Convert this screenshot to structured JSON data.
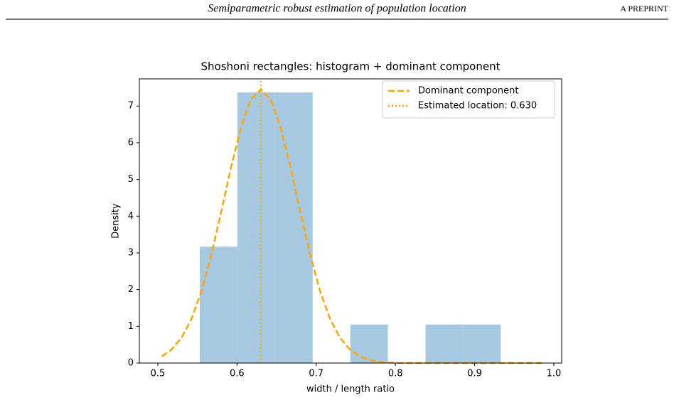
{
  "header": {
    "title": "Semiparametric robust estimation of population location",
    "right": "A PREPRINT"
  },
  "chart_data": {
    "type": "histogram",
    "title": "Shoshoni rectangles: histogram + dominant component",
    "x_label": "width / length ratio",
    "y_label": "Density",
    "bins": [
      0.553,
      0.6005,
      0.648,
      0.6955,
      0.743,
      0.7905,
      0.838,
      0.8855,
      0.933
    ],
    "values": [
      3.17,
      7.37,
      7.37,
      0,
      1.05,
      0,
      1.05,
      1.05
    ],
    "color": "#a6c8e0",
    "lines": [
      {
        "name": "Dominant component",
        "color": "#ffa500",
        "x": [
          0.505,
          0.5175,
          0.53,
          0.5425,
          0.555,
          0.5675,
          0.58,
          0.5925,
          0.605,
          0.6175,
          0.63,
          0.6425,
          0.655,
          0.6675,
          0.68,
          0.6925,
          0.705,
          0.7175,
          0.73,
          0.7425,
          0.755,
          0.7675,
          0.78,
          0.805,
          0.83,
          0.88,
          0.93,
          0.985
        ],
        "values": [
          0.18,
          0.37,
          0.69,
          1.2,
          1.95,
          2.94,
          4.11,
          5.33,
          6.42,
          7.18,
          7.45,
          7.18,
          6.42,
          5.33,
          4.11,
          2.94,
          1.95,
          1.2,
          0.69,
          0.37,
          0.18,
          0.08,
          0.03,
          0,
          0,
          0,
          0,
          0
        ]
      }
    ],
    "vlines": [
      {
        "name": "Estimated location: 0.630",
        "color": "#ffa500",
        "value": 0.63
      }
    ],
    "xlim": [
      0.4767,
      1.0099
    ],
    "ylim": [
      0,
      7.74
    ],
    "xticks": [
      0.5,
      0.6,
      0.7,
      0.8,
      0.9,
      {
        "value": 1,
        "label": "1.0"
      }
    ],
    "yticks": [
      0,
      1,
      2,
      3,
      4,
      5,
      6,
      7
    ],
    "legend": "upper right"
  }
}
